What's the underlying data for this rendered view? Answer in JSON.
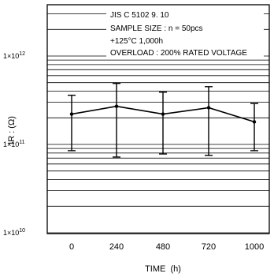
{
  "chart_data": {
    "type": "line",
    "notes": [
      "JIS C 5102 9. 10",
      "SAMPLE SIZE : n = 50pcs",
      "+125°C 1,000h",
      "OVERLOAD : 200% RATED VOLTAGE"
    ],
    "xlabel": "TIME  (h)",
    "ylabel": "IR : (Ω)",
    "x_categories": [
      "0",
      "240",
      "480",
      "720",
      "1000"
    ],
    "y_scale": "log",
    "ylim": [
      10000000000.0,
      10000000000000.0
    ],
    "y_ticks": [
      {
        "value": 10000000000.0,
        "label": "1×10",
        "exp": "10"
      },
      {
        "value": 100000000000.0,
        "label": "1×10",
        "exp": "11"
      },
      {
        "value": 1000000000000.0,
        "label": "1×10",
        "exp": "12"
      }
    ],
    "grid": true,
    "series": [
      {
        "mean": [
          220000000000.0,
          270000000000.0,
          220000000000.0,
          260000000000.0,
          180000000000.0
        ],
        "min": [
          85000000000.0,
          72000000000.0,
          78000000000.0,
          75000000000.0,
          85000000000.0
        ],
        "max": [
          360000000000.0,
          490000000000.0,
          390000000000.0,
          450000000000.0,
          290000000000.0
        ]
      }
    ],
    "colors": {
      "line": "#000000",
      "grid": "#000000"
    }
  }
}
